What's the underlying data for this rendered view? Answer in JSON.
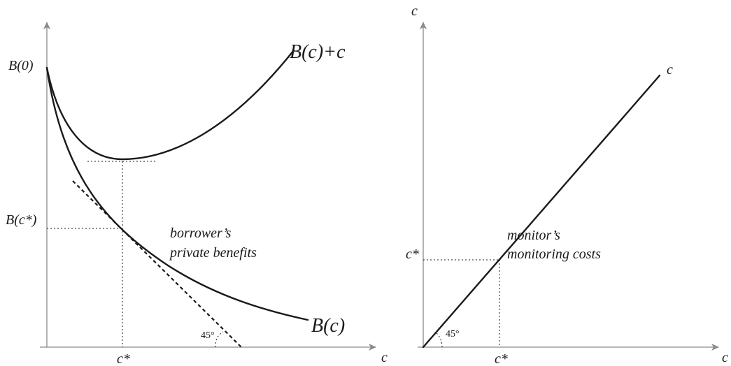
{
  "left_panel": {
    "y_axis": {
      "label_top": "B(0)",
      "label_mid": "B(c*)"
    },
    "x_axis": {
      "label": "c",
      "tick": "c*"
    },
    "curves": {
      "upper": "B(c)+c",
      "lower": "B(c)"
    },
    "annotation": {
      "line1": "borrower’s",
      "line2": "private benefits"
    },
    "angle": "45°"
  },
  "right_panel": {
    "y_axis": {
      "label": "c",
      "tick": "c*"
    },
    "x_axis": {
      "label": "c",
      "tick": "c*"
    },
    "line_label": "c",
    "annotation": {
      "line1": "monitor’s",
      "line2": "monitoring costs"
    },
    "angle": "45°"
  }
}
